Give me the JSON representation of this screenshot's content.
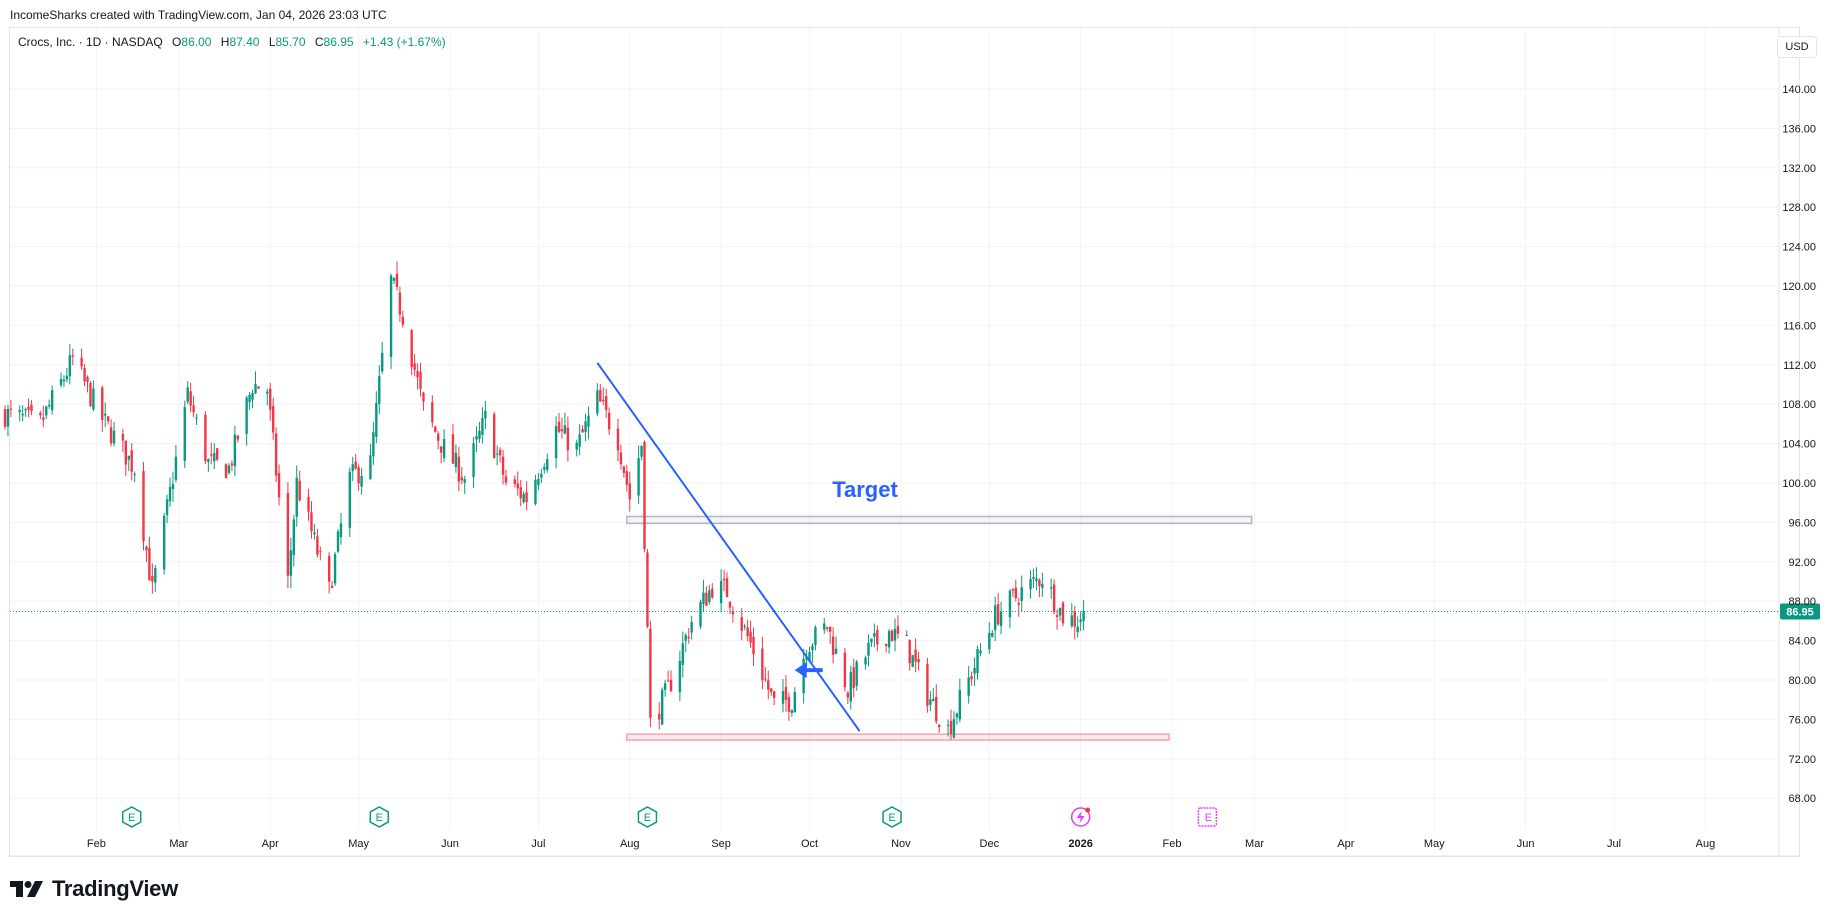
{
  "credit": "IncomeSharks created with TradingView.com, Jan 04, 2026 23:03 UTC",
  "legend": {
    "symbol": "Crocs, Inc. · 1D · NASDAQ",
    "open_label": "O",
    "open": "86.00",
    "high_label": "H",
    "high": "87.40",
    "low_label": "L",
    "low": "85.70",
    "close_label": "C",
    "close": "86.95",
    "change": "+1.43 (+1.67%)"
  },
  "currency_button": "USD",
  "brand": {
    "name": "TradingView",
    "icon": "tradingview-logo"
  },
  "colors": {
    "up": "#089981",
    "down": "#f23645",
    "trendline": "#2962ff",
    "support": "#f5a3aa",
    "target_zone": "#b2b5be",
    "event_alt": "#e040fb"
  },
  "chart_data": {
    "type": "candlestick",
    "title": "Crocs, Inc. · 1D · NASDAQ",
    "currency": "USD",
    "ylim": [
      66,
      142
    ],
    "y_ticks": [
      "140.00",
      "136.00",
      "132.00",
      "128.00",
      "124.00",
      "120.00",
      "116.00",
      "112.00",
      "108.00",
      "104.00",
      "100.00",
      "96.00",
      "92.00",
      "88.00",
      "84.00",
      "80.00",
      "76.00",
      "72.00",
      "68.00"
    ],
    "x_ticks": [
      "Feb",
      "Mar",
      "Apr",
      "May",
      "Jun",
      "Jul",
      "Aug",
      "Sep",
      "Oct",
      "Nov",
      "Dec",
      "2026",
      "Feb",
      "Mar",
      "Apr",
      "May",
      "Jun",
      "Jul",
      "Aug"
    ],
    "x_tick_bold": "2026",
    "last_price": "86.95",
    "grid": true,
    "annotations": {
      "target_label": "Target",
      "target_zone": {
        "from": "2025-07-31",
        "to": "2026-02-28",
        "low": 95.9,
        "high": 96.6
      },
      "support_zone": {
        "from": "2025-07-31",
        "to": "2026-01-31",
        "low": 73.9,
        "high": 74.5
      },
      "trendline": [
        {
          "date": "2025-07-21",
          "price": 112.2
        },
        {
          "date": "2025-10-18",
          "price": 74.8
        }
      ],
      "arrow": {
        "date": "2025-09-28",
        "price": 81,
        "direction": "left"
      }
    },
    "events": [
      {
        "date": "2025-02-13",
        "type": "earnings",
        "label": "E"
      },
      {
        "date": "2025-05-08",
        "type": "earnings",
        "label": "E"
      },
      {
        "date": "2025-08-07",
        "type": "earnings",
        "label": "E"
      },
      {
        "date": "2025-10-29",
        "type": "earnings",
        "label": "E"
      },
      {
        "date": "2026-01-01",
        "type": "dividend-lightning",
        "label": ""
      },
      {
        "date": "2026-02-13",
        "type": "earnings-upcoming",
        "label": "E"
      }
    ],
    "anchors": [
      [
        "2025-01-01",
        107.0
      ],
      [
        "2025-01-13",
        106.0
      ],
      [
        "2025-01-24",
        112.5
      ],
      [
        "2025-02-03",
        106.5
      ],
      [
        "2025-02-14",
        101.5
      ],
      [
        "2025-02-20",
        89.0
      ],
      [
        "2025-03-04",
        109.0
      ],
      [
        "2025-03-11",
        102.0
      ],
      [
        "2025-03-18",
        101.5
      ],
      [
        "2025-03-26",
        110.0
      ],
      [
        "2025-03-31",
        109.5
      ],
      [
        "2025-04-07",
        90.0
      ],
      [
        "2025-04-10",
        100.0
      ],
      [
        "2025-04-21",
        89.0
      ],
      [
        "2025-04-28",
        100.5
      ],
      [
        "2025-05-05",
        102.0
      ],
      [
        "2025-05-08",
        110.0
      ],
      [
        "2025-05-12",
        120.5
      ],
      [
        "2025-05-16",
        117.0
      ],
      [
        "2025-05-23",
        107.5
      ],
      [
        "2025-05-30",
        103.5
      ],
      [
        "2025-06-06",
        100.5
      ],
      [
        "2025-06-13",
        106.5
      ],
      [
        "2025-06-20",
        100.0
      ],
      [
        "2025-06-27",
        98.5
      ],
      [
        "2025-07-07",
        105.5
      ],
      [
        "2025-07-14",
        103.5
      ],
      [
        "2025-07-21",
        108.5
      ],
      [
        "2025-07-28",
        104.5
      ],
      [
        "2025-08-01",
        98.5
      ],
      [
        "2025-08-05",
        104.0
      ],
      [
        "2025-08-08",
        75.5
      ],
      [
        "2025-08-14",
        79.0
      ],
      [
        "2025-08-22",
        86.0
      ],
      [
        "2025-08-29",
        89.5
      ],
      [
        "2025-09-03",
        89.0
      ],
      [
        "2025-09-12",
        83.0
      ],
      [
        "2025-09-19",
        77.5
      ],
      [
        "2025-09-25",
        78.0
      ],
      [
        "2025-09-30",
        83.5
      ],
      [
        "2025-10-07",
        85.5
      ],
      [
        "2025-10-14",
        79.0
      ],
      [
        "2025-10-21",
        83.0
      ],
      [
        "2025-10-28",
        85.0
      ],
      [
        "2025-11-03",
        83.5
      ],
      [
        "2025-11-10",
        78.5
      ],
      [
        "2025-11-17",
        75.0
      ],
      [
        "2025-11-24",
        80.0
      ],
      [
        "2025-12-03",
        86.5
      ],
      [
        "2025-12-12",
        89.0
      ],
      [
        "2025-12-19",
        90.5
      ],
      [
        "2025-12-26",
        86.5
      ],
      [
        "2025-12-31",
        86.0
      ],
      [
        "2026-01-02",
        86.95
      ]
    ]
  }
}
